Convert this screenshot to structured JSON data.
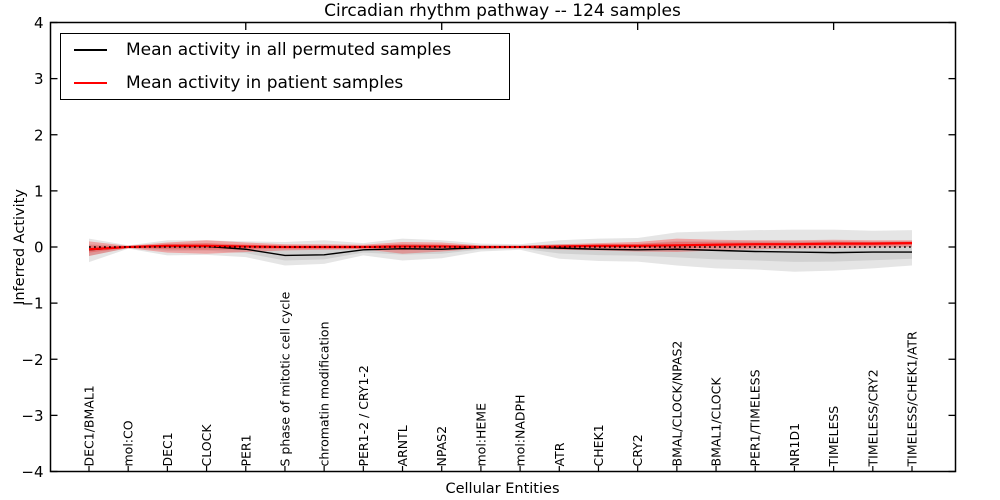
{
  "title": "Circadian rhythm pathway -- 124 samples",
  "axes": {
    "ylabel": "Inferred Activity",
    "xlabel": "Cellular Entities",
    "y_ticks": [
      4,
      3,
      2,
      1,
      0,
      -1,
      -2,
      -3,
      -4
    ],
    "x_major_ticks": [
      5,
      10,
      15,
      20
    ]
  },
  "legend": {
    "items": [
      {
        "label": "Mean activity in all permuted samples",
        "color": "#000000"
      },
      {
        "label": "Mean activity in patient samples",
        "color": "#ff0000"
      }
    ]
  },
  "chart_data": {
    "type": "line",
    "title": "Circadian rhythm pathway -- 124 samples",
    "xlabel": "Cellular Entities",
    "ylabel": "Inferred Activity",
    "ylim": [
      -4,
      4
    ],
    "grid": false,
    "legend_position": "upper left",
    "categories": [
      "DEC1/BMAL1",
      "mol:CO",
      "DEC1",
      "CLOCK",
      "PER1",
      "S phase of mitotic cell cycle",
      "chromatin modification",
      "PER1-2 / CRY1-2",
      "ARNTL",
      "NPAS2",
      "mol:HEME",
      "mol:NADPH",
      "ATR",
      "CHEK1",
      "CRY2",
      "BMAL/CLOCK/NPAS2",
      "BMAL1/CLOCK",
      "PER1/TIMELESS",
      "NR1D1",
      "TIMELESS",
      "TIMELESS/CRY2",
      "TIMELESS/CHEK1/ATR"
    ],
    "series": [
      {
        "name": "Mean activity in all permuted samples",
        "color": "#000000",
        "values": [
          -0.05,
          0.0,
          0.01,
          0.01,
          -0.04,
          -0.15,
          -0.14,
          -0.05,
          -0.03,
          -0.04,
          -0.01,
          0.0,
          -0.02,
          -0.04,
          -0.05,
          -0.04,
          -0.06,
          -0.08,
          -0.09,
          -0.1,
          -0.09,
          -0.09
        ]
      },
      {
        "name": "Mean activity in patient samples",
        "color": "#ff0000",
        "values": [
          -0.04,
          0.0,
          0.02,
          0.02,
          0.01,
          0.0,
          0.0,
          0.0,
          0.01,
          0.01,
          0.0,
          0.0,
          0.01,
          0.02,
          0.02,
          0.03,
          0.04,
          0.05,
          0.05,
          0.06,
          0.06,
          0.07
        ]
      }
    ],
    "bands": [
      {
        "name": "permuted-samples-spread",
        "color": "#000000",
        "opacity": 0.1,
        "upper": [
          0.15,
          0.03,
          0.12,
          0.12,
          0.1,
          0.09,
          0.12,
          0.07,
          0.15,
          0.12,
          0.06,
          0.05,
          0.12,
          0.15,
          0.16,
          0.26,
          0.28,
          0.3,
          0.31,
          0.31,
          0.29,
          0.3
        ],
        "lower": [
          -0.27,
          -0.03,
          -0.15,
          -0.14,
          -0.18,
          -0.33,
          -0.3,
          -0.15,
          -0.24,
          -0.2,
          -0.08,
          -0.05,
          -0.21,
          -0.25,
          -0.26,
          -0.33,
          -0.38,
          -0.4,
          -0.44,
          -0.42,
          -0.38,
          -0.33
        ]
      },
      {
        "name": "patient-samples-spread",
        "color": "#ff0000",
        "opacity": 0.28,
        "upper": [
          0.1,
          0.02,
          0.08,
          0.12,
          0.08,
          0.05,
          0.05,
          0.04,
          0.09,
          0.08,
          0.03,
          0.02,
          0.05,
          0.07,
          0.09,
          0.15,
          0.13,
          0.12,
          0.12,
          0.13,
          0.12,
          0.12
        ],
        "lower": [
          -0.16,
          -0.02,
          -0.1,
          -0.12,
          -0.09,
          -0.06,
          -0.05,
          -0.04,
          -0.12,
          -0.08,
          -0.03,
          -0.02,
          -0.05,
          -0.06,
          -0.08,
          -0.09,
          -0.06,
          -0.04,
          -0.03,
          -0.02,
          -0.01,
          0.0
        ]
      }
    ],
    "zero_line": {
      "y": 0,
      "style": "dotted",
      "color": "#000000"
    }
  }
}
